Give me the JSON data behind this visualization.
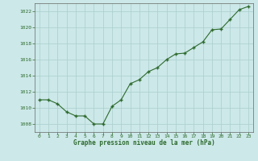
{
  "x": [
    0,
    1,
    2,
    3,
    4,
    5,
    6,
    7,
    8,
    9,
    10,
    11,
    12,
    13,
    14,
    15,
    16,
    17,
    18,
    19,
    20,
    21,
    22,
    23
  ],
  "y": [
    1011.0,
    1011.0,
    1010.5,
    1009.5,
    1009.0,
    1009.0,
    1008.0,
    1008.0,
    1010.2,
    1011.0,
    1013.0,
    1013.5,
    1014.5,
    1015.0,
    1016.0,
    1016.7,
    1016.8,
    1017.5,
    1018.2,
    1019.7,
    1019.8,
    1021.0,
    1022.2,
    1022.6
  ],
  "line_color": "#2d6a2d",
  "marker": "+",
  "marker_color": "#2d6a2d",
  "background_color": "#cce8e8",
  "grid_color": "#aacece",
  "xlabel": "Graphe pression niveau de la mer (hPa)",
  "xlabel_color": "#2d6a2d",
  "tick_color": "#2d6a2d",
  "ylim": [
    1007,
    1023
  ],
  "xlim": [
    -0.5,
    23.5
  ],
  "yticks": [
    1008,
    1010,
    1012,
    1014,
    1016,
    1018,
    1020,
    1022
  ],
  "xticks": [
    0,
    1,
    2,
    3,
    4,
    5,
    6,
    7,
    8,
    9,
    10,
    11,
    12,
    13,
    14,
    15,
    16,
    17,
    18,
    19,
    20,
    21,
    22,
    23
  ],
  "linewidth": 0.8,
  "markersize": 3
}
